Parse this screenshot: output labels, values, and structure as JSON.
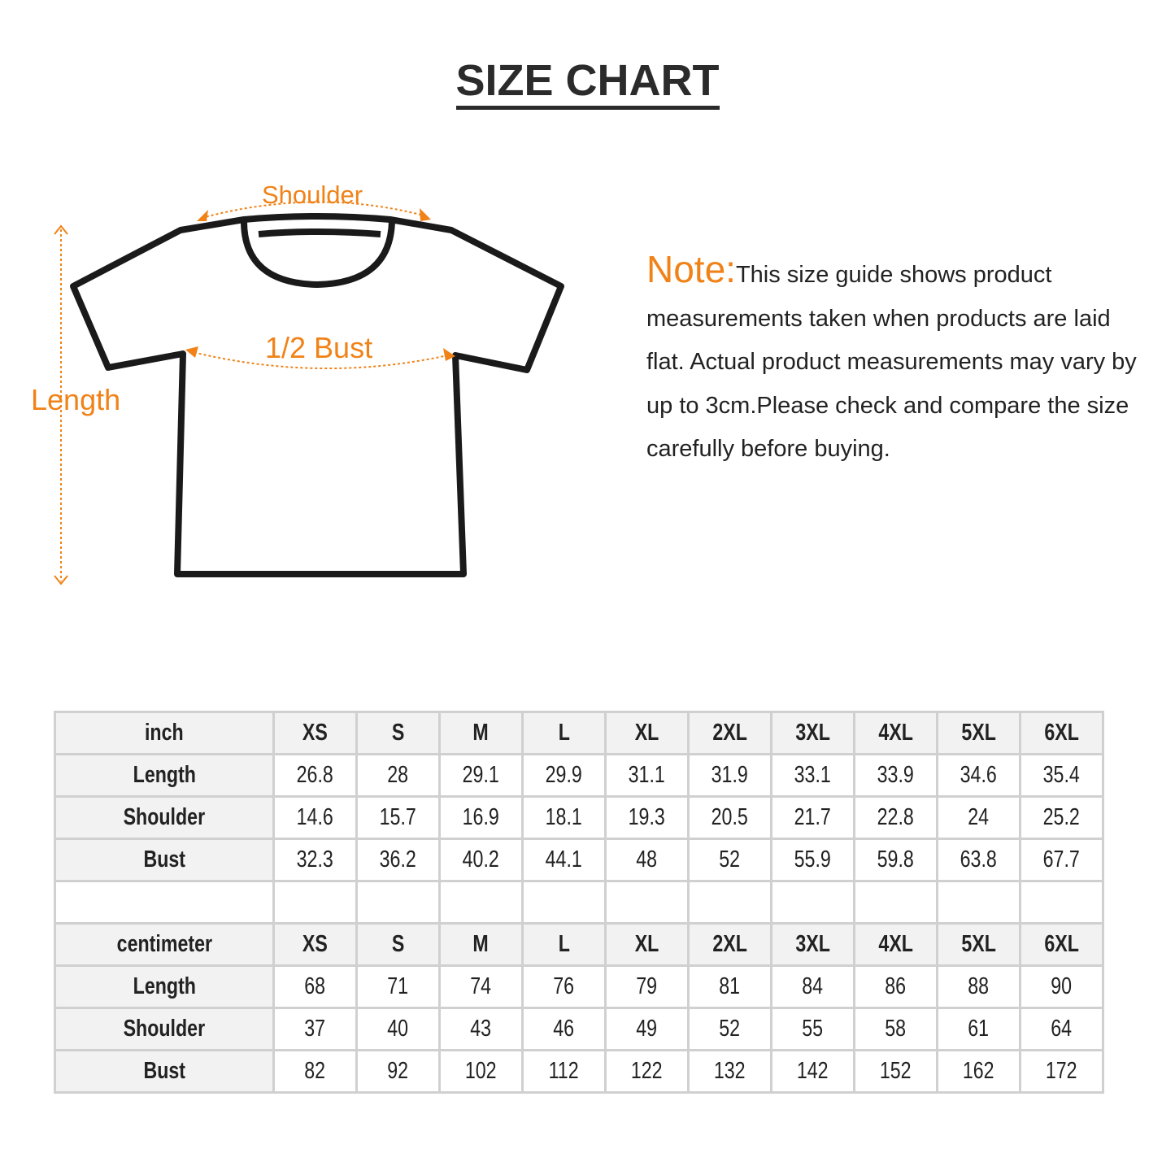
{
  "title": "SIZE CHART",
  "diagram": {
    "shoulder": "Shoulder",
    "bust": "1/2 Bust",
    "length": "Length",
    "accent": "#f08217"
  },
  "note": {
    "label": "Note:",
    "text": "This size guide shows product measurements taken when products are laid flat. Actual product measurements may vary by up to 3cm.Please check and compare the size carefully before buying."
  },
  "sizes": [
    "XS",
    "S",
    "M",
    "L",
    "XL",
    "2XL",
    "3XL",
    "4XL",
    "5XL",
    "6XL"
  ],
  "tables": [
    {
      "unit": "inch",
      "rows": [
        {
          "label": "Length",
          "values": [
            "26.8",
            "28",
            "29.1",
            "29.9",
            "31.1",
            "31.9",
            "33.1",
            "33.9",
            "34.6",
            "35.4"
          ]
        },
        {
          "label": "Shoulder",
          "values": [
            "14.6",
            "15.7",
            "16.9",
            "18.1",
            "19.3",
            "20.5",
            "21.7",
            "22.8",
            "24",
            "25.2"
          ]
        },
        {
          "label": "Bust",
          "values": [
            "32.3",
            "36.2",
            "40.2",
            "44.1",
            "48",
            "52",
            "55.9",
            "59.8",
            "63.8",
            "67.7"
          ]
        }
      ]
    },
    {
      "unit": "centimeter",
      "rows": [
        {
          "label": "Length",
          "values": [
            "68",
            "71",
            "74",
            "76",
            "79",
            "81",
            "84",
            "86",
            "88",
            "90"
          ]
        },
        {
          "label": "Shoulder",
          "values": [
            "37",
            "40",
            "43",
            "46",
            "49",
            "52",
            "55",
            "58",
            "61",
            "64"
          ]
        },
        {
          "label": "Bust",
          "values": [
            "82",
            "92",
            "102",
            "112",
            "122",
            "132",
            "142",
            "152",
            "162",
            "172"
          ]
        }
      ]
    }
  ]
}
